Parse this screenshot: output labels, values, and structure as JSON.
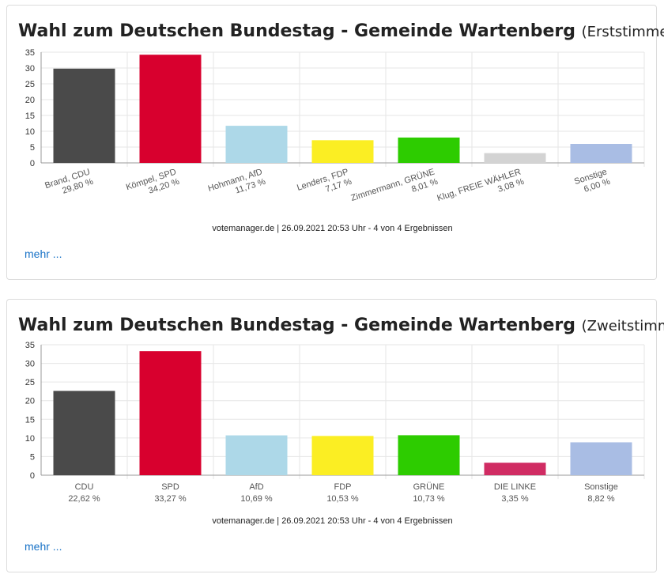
{
  "chart_data": [
    {
      "type": "bar",
      "title": "Wahl zum Deutschen Bundestag - Gemeinde Wartenberg",
      "subtitle": "(Erststimmen)",
      "ylim": [
        0,
        35
      ],
      "yticks": [
        0,
        5,
        10,
        15,
        20,
        25,
        30,
        35
      ],
      "grid": true,
      "categories": [
        "Brand, CDU",
        "Kömpel, SPD",
        "Hohmann, AfD",
        "Lenders, FDP",
        "Zimmermann, GRÜNE",
        "Klug, FREIE WÄHLER",
        "Sonstige"
      ],
      "values": [
        29.8,
        34.2,
        11.73,
        7.17,
        8.01,
        3.08,
        6.0
      ],
      "value_labels": [
        "29,80 %",
        "34,20 %",
        "11,73 %",
        "7,17 %",
        "8,01 %",
        "3,08 %",
        "6,00 %"
      ],
      "colors": [
        "#4a4a4a",
        "#d8002e",
        "#add8e8",
        "#fbee23",
        "#2dcc00",
        "#d3d3d3",
        "#a9bde4"
      ],
      "source": "votemanager.de | 26.09.2021 20:53 Uhr - 4 von 4 Ergebnissen",
      "more": "mehr ..."
    },
    {
      "type": "bar",
      "title": "Wahl zum Deutschen Bundestag - Gemeinde Wartenberg",
      "subtitle": "(Zweitstimmen)",
      "ylim": [
        0,
        35
      ],
      "yticks": [
        0,
        5,
        10,
        15,
        20,
        25,
        30,
        35
      ],
      "grid": true,
      "categories": [
        "CDU",
        "SPD",
        "AfD",
        "FDP",
        "GRÜNE",
        "DIE LINKE",
        "Sonstige"
      ],
      "values": [
        22.62,
        33.27,
        10.69,
        10.53,
        10.73,
        3.35,
        8.82
      ],
      "value_labels": [
        "22,62 %",
        "33,27 %",
        "10,69 %",
        "10,53 %",
        "10,73 %",
        "3,35 %",
        "8,82 %"
      ],
      "colors": [
        "#4a4a4a",
        "#d8002e",
        "#add8e8",
        "#fbee23",
        "#2dcc00",
        "#d02c63",
        "#a9bde4"
      ],
      "source": "votemanager.de | 26.09.2021 20:53 Uhr - 4 von 4 Ergebnissen",
      "more": "mehr ..."
    }
  ]
}
